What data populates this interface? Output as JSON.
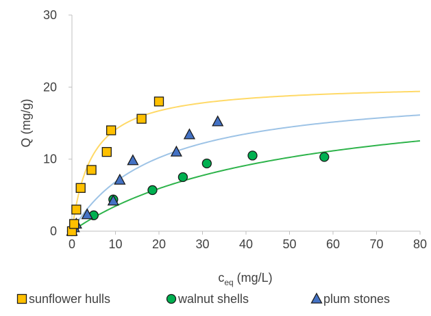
{
  "chart_data": {
    "type": "scatter",
    "title": "",
    "xlabel_main": "c",
    "xlabel_sub": "eq",
    "xlabel_unit": " (mg/L)",
    "ylabel": "Q (mg/g)",
    "xlim": [
      0,
      80
    ],
    "ylim": [
      0,
      30
    ],
    "x_ticks": [
      "0",
      "10",
      "20",
      "30",
      "40",
      "50",
      "60",
      "70",
      "80"
    ],
    "y_ticks": [
      "0",
      "10",
      "20",
      "30"
    ],
    "grid": false,
    "legend_position": "bottom",
    "series": [
      {
        "name": "sunflower hulls",
        "marker": "square",
        "marker_color": "#FFC000",
        "fit_color": "#FFD966",
        "points": [
          {
            "x": 0,
            "y": 0
          },
          {
            "x": 0.5,
            "y": 1
          },
          {
            "x": 1,
            "y": 3
          },
          {
            "x": 2,
            "y": 6
          },
          {
            "x": 4.5,
            "y": 8.5
          },
          {
            "x": 8,
            "y": 11
          },
          {
            "x": 9,
            "y": 14
          },
          {
            "x": 16,
            "y": 15.6
          },
          {
            "x": 20,
            "y": 18
          }
        ],
        "fit": {
          "qmax": 20.5,
          "K": 0.22
        }
      },
      {
        "name": "walnut shells",
        "marker": "circle",
        "marker_color": "#00B050",
        "fit_color": "#2DB34A",
        "points": [
          {
            "x": 0,
            "y": 0
          },
          {
            "x": 0.5,
            "y": 0.5
          },
          {
            "x": 5,
            "y": 2.2
          },
          {
            "x": 9.5,
            "y": 4.4
          },
          {
            "x": 18.5,
            "y": 5.7
          },
          {
            "x": 25.5,
            "y": 7.5
          },
          {
            "x": 31,
            "y": 9.4
          },
          {
            "x": 41.5,
            "y": 10.5
          },
          {
            "x": 58,
            "y": 10.3
          }
        ],
        "fit": {
          "qmax": 20,
          "K": 0.021
        }
      },
      {
        "name": "plum stones",
        "marker": "triangle",
        "marker_color": "#4472C4",
        "fit_color": "#9DC3E6",
        "points": [
          {
            "x": 0,
            "y": 0
          },
          {
            "x": 0.5,
            "y": 0.5
          },
          {
            "x": 1,
            "y": 1
          },
          {
            "x": 3.5,
            "y": 2.3
          },
          {
            "x": 9.5,
            "y": 4.2
          },
          {
            "x": 11,
            "y": 7.1
          },
          {
            "x": 14,
            "y": 9.8
          },
          {
            "x": 24,
            "y": 11
          },
          {
            "x": 27,
            "y": 13.4
          },
          {
            "x": 33.5,
            "y": 15.2
          }
        ],
        "fit": {
          "qmax": 20,
          "K": 0.052
        }
      }
    ]
  }
}
